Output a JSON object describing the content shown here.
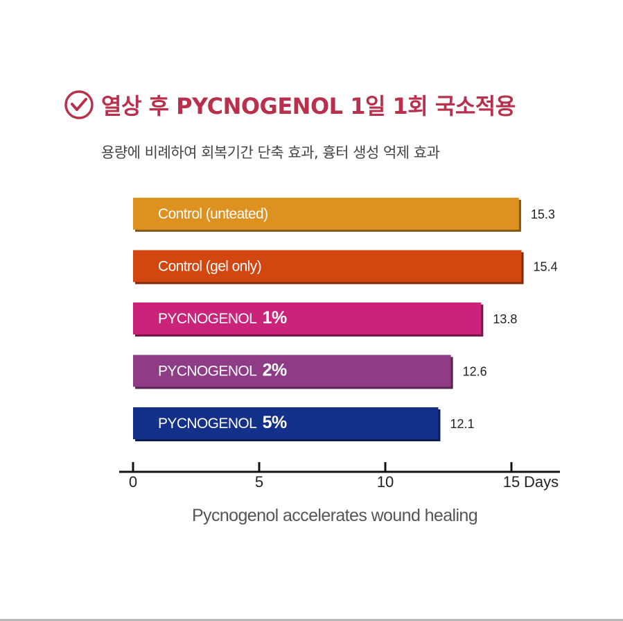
{
  "header": {
    "title": "열상 후 PYCNOGENOL 1일 1회 국소적용",
    "subtitle": "용량에 비례하여 회복기간 단축 효과, 흉터 생성 억제 효과",
    "check_icon": "check-circle-icon",
    "accent_color": "#b8304c"
  },
  "chart_data": {
    "type": "bar",
    "orientation": "horizontal",
    "categories": [
      {
        "name": "Control (unteated)",
        "pct": ""
      },
      {
        "name": "Control (gel only)",
        "pct": ""
      },
      {
        "name": "PYCNOGENOL ",
        "pct": "1%"
      },
      {
        "name": "PYCNOGENOL ",
        "pct": "2%"
      },
      {
        "name": "PYCNOGENOL ",
        "pct": "5%"
      }
    ],
    "values": [
      15.3,
      15.4,
      13.8,
      12.6,
      12.1
    ],
    "value_labels": [
      "15.3",
      "15.4",
      "13.8",
      "12.6",
      "12.1"
    ],
    "colors": [
      "#dc9121",
      "#d2470f",
      "#c9247a",
      "#8f3c87",
      "#13308a"
    ],
    "xlim": [
      0,
      16.8
    ],
    "xticks": [
      0,
      5,
      10,
      15
    ],
    "xtick_labels": [
      "0",
      "5",
      "10",
      "15"
    ],
    "xlabel": "Days",
    "caption": "Pycnogenol accelerates wound healing"
  }
}
